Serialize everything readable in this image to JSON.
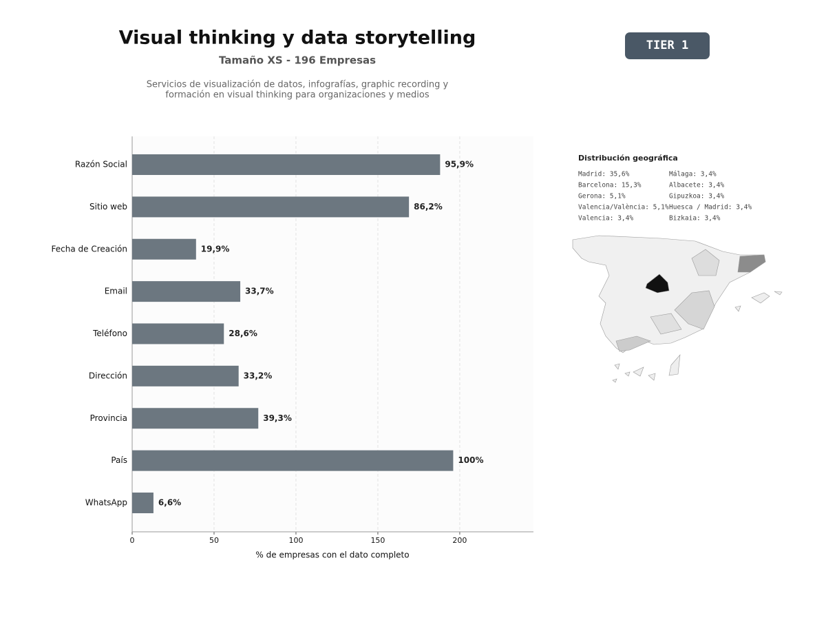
{
  "header": {
    "title": "Visual thinking y data storytelling",
    "subtitle": "Tamaño XS - 196 Empresas",
    "description": [
      "Servicios de visualización de datos, infografías, graphic recording y",
      "formación en visual thinking para organizaciones y medios"
    ]
  },
  "badge": "TIER 1",
  "chart_data": {
    "type": "barh",
    "categories": [
      "Razón Social",
      "Sitio web",
      "Fecha de Creación",
      "Email",
      "Teléfono",
      "Dirección",
      "Provincia",
      "País",
      "WhatsApp"
    ],
    "values": [
      188,
      169,
      39,
      66,
      56,
      65,
      77,
      196,
      13
    ],
    "value_labels": [
      "95,9%",
      "86,2%",
      "19,9%",
      "33,7%",
      "28,6%",
      "33,2%",
      "39,3%",
      "100%",
      "6,6%"
    ],
    "color": "#6c7780",
    "xlim": [
      0,
      245
    ],
    "xticks": [
      0,
      50,
      100,
      150,
      200
    ],
    "xlabel": "% de empresas con el dato completo",
    "grid": true
  },
  "geo": {
    "title": "Distribución geográfica",
    "items": [
      "Madrid: 35,6%",
      "Barcelona: 15,3%",
      "Gerona: 5,1%",
      "Valencia/València: 5,1%",
      "Valencia: 3,4%",
      "Málaga: 3,4%",
      "Albacete: 3,4%",
      "Gipuzkoa: 3,4%",
      "Huesca / Madrid: 3,4%",
      "Bizkaia: 3,4%"
    ]
  }
}
